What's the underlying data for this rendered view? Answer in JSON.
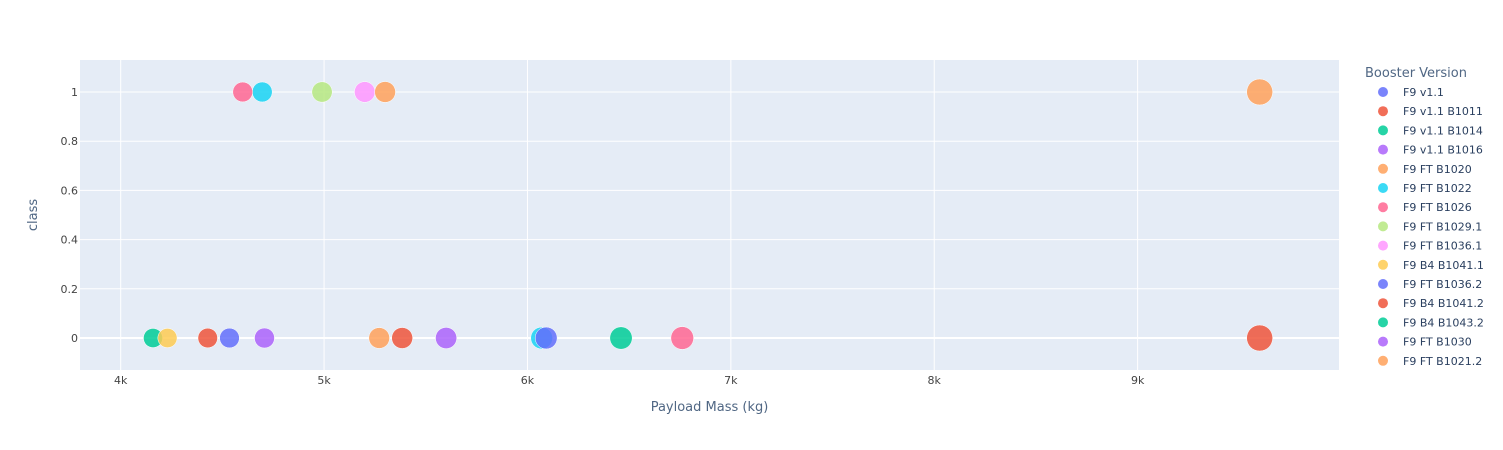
{
  "chart_data": {
    "type": "scatter",
    "xlabel": "Payload Mass (kg)",
    "ylabel": "class",
    "xlim": [
      3800,
      9990
    ],
    "ylim": [
      -0.13,
      1.13
    ],
    "x_ticks": [
      4000,
      5000,
      6000,
      7000,
      8000,
      9000
    ],
    "x_tick_labels": [
      "4k",
      "5k",
      "6k",
      "7k",
      "8k",
      "9k"
    ],
    "y_ticks": [
      0,
      0.2,
      0.4,
      0.6,
      0.8,
      1
    ],
    "y_tick_labels": [
      "0",
      "0.2",
      "0.4",
      "0.6",
      "0.8",
      "1"
    ],
    "grid": true,
    "background": "#e5ecf6",
    "legend_title": "Booster Version",
    "legend_placement": "right",
    "series": [
      {
        "name": "F9 v1.1",
        "color": "#636efa",
        "points": []
      },
      {
        "name": "F9 v1.1 B1011",
        "color": "#ef553b",
        "points": [
          {
            "x": 4428,
            "y": 0
          }
        ]
      },
      {
        "name": "F9 v1.1 B1014",
        "color": "#00cc96",
        "points": [
          {
            "x": 4159,
            "y": 0
          }
        ]
      },
      {
        "name": "F9 v1.1 B1016",
        "color": "#ab63fa",
        "points": [
          {
            "x": 4707,
            "y": 0
          }
        ]
      },
      {
        "name": "F9 FT B1020",
        "color": "#ffa15a",
        "points": [
          {
            "x": 5271,
            "y": 0
          }
        ]
      },
      {
        "name": "F9 FT B1022",
        "color": "#19d3f3",
        "points": [
          {
            "x": 4696,
            "y": 1
          },
          {
            "x": 6070,
            "y": 0
          }
        ]
      },
      {
        "name": "F9 FT B1026",
        "color": "#ff6692",
        "points": [
          {
            "x": 4600,
            "y": 1
          },
          {
            "x": 6761,
            "y": 0
          }
        ]
      },
      {
        "name": "F9 FT B1029.1",
        "color": "#b6e880",
        "points": [
          {
            "x": 4990,
            "y": 1
          }
        ]
      },
      {
        "name": "F9 FT B1036.1",
        "color": "#ff97ff",
        "points": [
          {
            "x": 5200,
            "y": 1
          }
        ]
      },
      {
        "name": "F9 B4 B1041.1",
        "color": "#fecb52",
        "points": [
          {
            "x": 4230,
            "y": 0
          }
        ]
      },
      {
        "name": "F9 FT  B1036.2",
        "color": "#636efa",
        "points": [
          {
            "x": 4535,
            "y": 0
          },
          {
            "x": 6092,
            "y": 0
          }
        ]
      },
      {
        "name": "F9 B4  B1041.2",
        "color": "#ef553b",
        "points": [
          {
            "x": 5384,
            "y": 0
          },
          {
            "x": 9600,
            "y": 0
          }
        ]
      },
      {
        "name": "F9 B4  B1043.2",
        "color": "#00cc96",
        "points": [
          {
            "x": 6460,
            "y": 0
          }
        ]
      },
      {
        "name": "F9 FT B1030",
        "color": "#ab63fa",
        "points": [
          {
            "x": 5600,
            "y": 0
          }
        ]
      },
      {
        "name": "F9 FT  B1021.2",
        "color": "#ffa15a",
        "points": [
          {
            "x": 5300,
            "y": 1
          },
          {
            "x": 9600,
            "y": 1
          }
        ]
      }
    ]
  }
}
